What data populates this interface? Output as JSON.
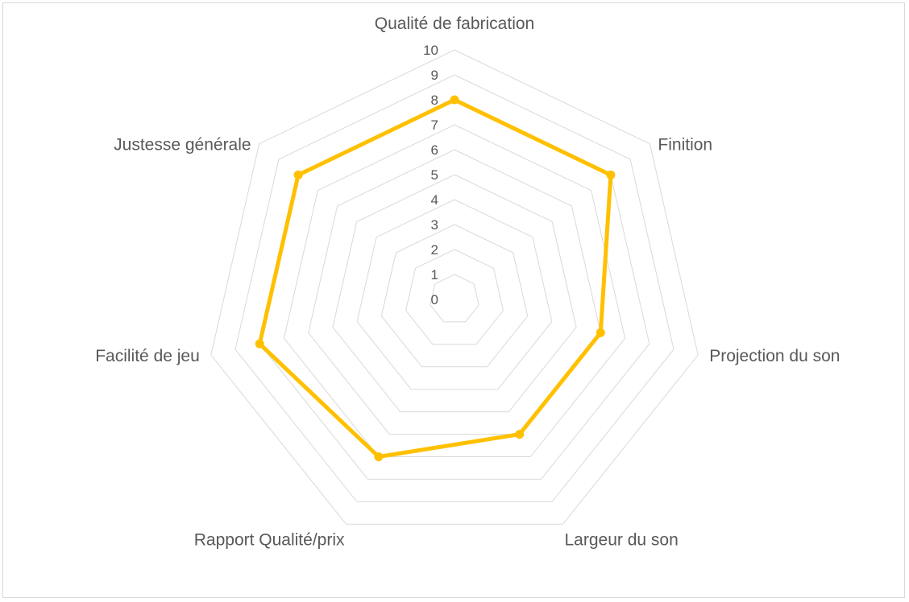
{
  "chart_data": {
    "type": "radar",
    "title": "",
    "categories": [
      "Qualité de fabrication",
      "Finition",
      "Projection du son",
      "Largeur du son",
      "Rapport Qualité/prix",
      "Facilité de jeu",
      "Justesse générale"
    ],
    "series": [
      {
        "values": [
          8,
          8,
          6,
          6,
          7,
          8,
          8
        ],
        "color": "#FFC000"
      }
    ],
    "rlim": [
      0,
      10
    ],
    "ticks": [
      "0",
      "1",
      "2",
      "3",
      "4",
      "5",
      "6",
      "7",
      "8",
      "9",
      "10"
    ],
    "gridlines": true,
    "grid_color": "#d9d9d9",
    "legend": "none"
  }
}
